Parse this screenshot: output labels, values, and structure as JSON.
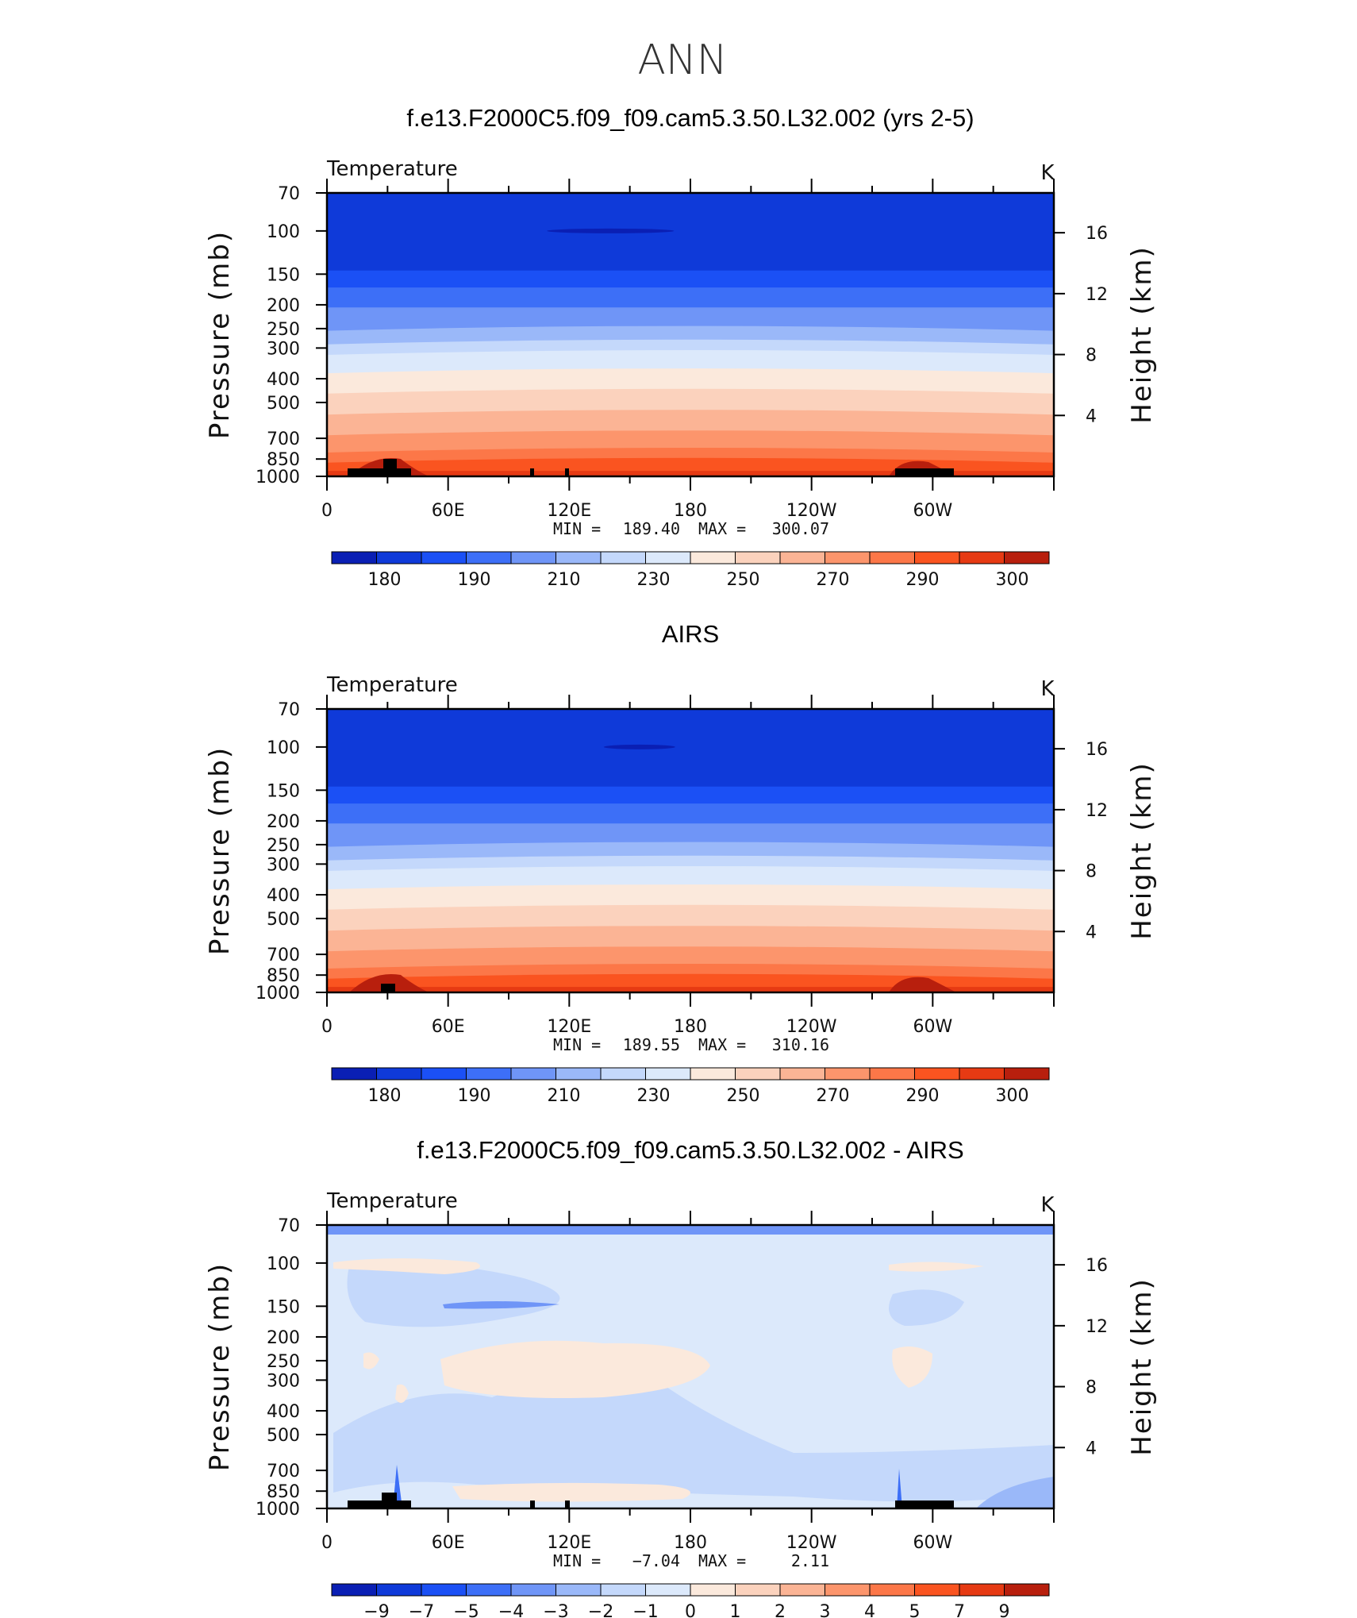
{
  "figure_title": "ANN",
  "colors": {
    "abs_levels": [
      "#000080",
      "#0a1fb4",
      "#0f3ad9",
      "#1b50f5",
      "#3d6ff7",
      "#6f95f7",
      "#9ab8f9",
      "#c4d8fb",
      "#dce9fb",
      "#fbe9dc",
      "#fbd2bd",
      "#fbb495",
      "#fc956c",
      "#fc7748",
      "#fa5420",
      "#e63a13",
      "#b81f0d",
      "#8b0000"
    ],
    "diff_levels": [
      "#000080",
      "#0a1fb4",
      "#0f3ad9",
      "#1b50f5",
      "#3d6ff7",
      "#6f95f7",
      "#9ab8f9",
      "#c4d8fb",
      "#dce9fb",
      "#fbe9dc",
      "#fbd2bd",
      "#fbb495",
      "#fc956c",
      "#fc7748",
      "#fa5420",
      "#e63a13",
      "#b81f0d",
      "#8b0000"
    ],
    "land": "#000000"
  },
  "chart_data": [
    {
      "type": "contour",
      "title": "f.e13.F2000C5.f09_f09.cam5.3.50.L32.002 (yrs 2-5)",
      "variable": "Temperature",
      "units": "K",
      "ylabel": "Pressure  (mb)",
      "ylabel_right": "Height  (km)",
      "x_ticks": [
        "0",
        "60E",
        "120E",
        "180",
        "120W",
        "60W"
      ],
      "y_ticks": [
        "70",
        "100",
        "150",
        "200",
        "250",
        "300",
        "400",
        "500",
        "700",
        "850",
        "1000"
      ],
      "y_ticks_right": [
        "16",
        "12",
        "8",
        "4"
      ],
      "stats": {
        "min_label": "MIN  =",
        "min": "189.40",
        "max_label": "MAX  =",
        "max": "300.07"
      },
      "colorbar_labels": [
        "180",
        "190",
        "210",
        "230",
        "250",
        "270",
        "290",
        "300"
      ],
      "band_levels": [
        2,
        3,
        4,
        5,
        6,
        7,
        8,
        9,
        10,
        11,
        12,
        13,
        14,
        15,
        16
      ],
      "band_bounds_mb": [
        70,
        145,
        170,
        205,
        255,
        290,
        320,
        380,
        460,
        560,
        680,
        800,
        880,
        950,
        1000
      ]
    },
    {
      "type": "contour",
      "title": "AIRS",
      "variable": "Temperature",
      "units": "K",
      "ylabel": "Pressure  (mb)",
      "ylabel_right": "Height  (km)",
      "x_ticks": [
        "0",
        "60E",
        "120E",
        "180",
        "120W",
        "60W"
      ],
      "y_ticks": [
        "70",
        "100",
        "150",
        "200",
        "250",
        "300",
        "400",
        "500",
        "700",
        "850",
        "1000"
      ],
      "y_ticks_right": [
        "16",
        "12",
        "8",
        "4"
      ],
      "stats": {
        "min_label": "MIN  =",
        "min": "189.55",
        "max_label": "MAX  =",
        "max": "310.16"
      },
      "colorbar_labels": [
        "180",
        "190",
        "210",
        "230",
        "250",
        "270",
        "290",
        "300"
      ],
      "band_levels": [
        2,
        3,
        4,
        5,
        6,
        7,
        8,
        9,
        10,
        11,
        12,
        13,
        14,
        15,
        16
      ],
      "band_bounds_mb": [
        70,
        145,
        170,
        205,
        255,
        290,
        320,
        380,
        460,
        560,
        680,
        800,
        880,
        950,
        1000
      ]
    },
    {
      "type": "contour",
      "title": "f.e13.F2000C5.f09_f09.cam5.3.50.L32.002 - AIRS",
      "variable": "Temperature",
      "units": "K",
      "ylabel": "Pressure  (mb)",
      "ylabel_right": "Height  (km)",
      "x_ticks": [
        "0",
        "60E",
        "120E",
        "180",
        "120W",
        "60W"
      ],
      "y_ticks": [
        "70",
        "100",
        "150",
        "200",
        "250",
        "300",
        "400",
        "500",
        "700",
        "850",
        "1000"
      ],
      "y_ticks_right": [
        "16",
        "12",
        "8",
        "4"
      ],
      "stats": {
        "min_label": "MIN  =",
        "min": "−7.04",
        "max_label": "MAX  =",
        "max": "2.11"
      },
      "colorbar_labels": [
        "−9",
        "−7",
        "−5",
        "−4",
        "−3",
        "−2",
        "−1",
        "0",
        "1",
        "2",
        "3",
        "4",
        "5",
        "7",
        "9"
      ],
      "background_level": 8
    }
  ]
}
